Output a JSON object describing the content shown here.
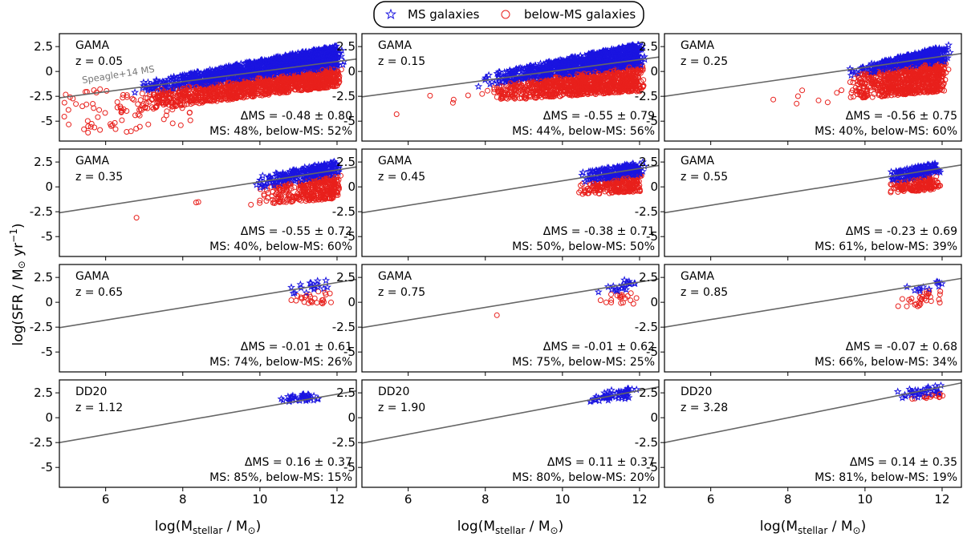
{
  "chart_data": {
    "type": "scatter",
    "layout": "4x3 panel grid",
    "legend": {
      "position": "top-center",
      "entries": [
        {
          "name": "MS galaxies",
          "marker": "star",
          "color": "#1a14e0"
        },
        {
          "name": "below-MS galaxies",
          "marker": "circle",
          "color": "#e8201c"
        }
      ]
    },
    "xlabel": "log(M",
    "xlabel_sub": "stellar",
    "xlabel_tail": " / M",
    "xlabel_sun": "⊙",
    "xlabel_end": ")",
    "ylabel": "log(SFR / M",
    "ylabel_sun": "⊙",
    "ylabel_mid": " yr",
    "ylabel_sup": "−1",
    "ylabel_end": ")",
    "xlim": [
      4.8,
      12.5
    ],
    "ylim": [
      -7.0,
      3.8
    ],
    "xticks": [
      6,
      8,
      10,
      12
    ],
    "xtick_labels": [
      "6",
      "8",
      "10",
      "12"
    ],
    "yticks": [
      2.5,
      0,
      -2.5,
      -5
    ],
    "ytick_labels": [
      "2.5",
      "0",
      "-2.5",
      "-5"
    ],
    "reference_line": {
      "label": "Speagle+14 MS",
      "points": [
        [
          4.8,
          -2.65
        ],
        [
          12.5,
          1.25
        ]
      ]
    },
    "panels": [
      {
        "survey": "GAMA",
        "z_label": "z = 0.05",
        "z": 0.05,
        "delta_ms": "ΔMS = -0.48 ± 0.80",
        "frac": "MS: 48%, below-MS: 52%",
        "ms_pct": 48,
        "bms_pct": 52,
        "cloud": {
          "xmin": 6.8,
          "xmax": 12.0,
          "ymin_at_low": -4.0,
          "ymin_at_high": -1.5,
          "ymax_at_low": -1.2,
          "ymax_at_high": 2.6
        },
        "ms_line": [
          [
            4.8,
            -2.65
          ],
          [
            12.5,
            1.25
          ]
        ]
      },
      {
        "survey": "GAMA",
        "z_label": "z = 0.15",
        "z": 0.15,
        "delta_ms": "ΔMS = -0.55 ± 0.79",
        "frac": "MS: 44%, below-MS: 56%",
        "ms_pct": 44,
        "bms_pct": 56,
        "cloud": {
          "xmin": 8.0,
          "xmax": 12.0,
          "ymin_at_low": -3.0,
          "ymin_at_high": -2.0,
          "ymax_at_low": -0.3,
          "ymax_at_high": 2.8
        },
        "ms_line": [
          [
            4.8,
            -2.55
          ],
          [
            12.5,
            1.45
          ]
        ]
      },
      {
        "survey": "GAMA",
        "z_label": "z = 0.25",
        "z": 0.25,
        "delta_ms": "ΔMS = -0.56 ± 0.75",
        "frac": "MS: 40%, below-MS: 60%",
        "ms_pct": 40,
        "bms_pct": 60,
        "cloud": {
          "xmin": 9.6,
          "xmax": 12.0,
          "ymin_at_low": -2.8,
          "ymin_at_high": -2.0,
          "ymax_at_low": 0.3,
          "ymax_at_high": 2.5
        },
        "ms_line": [
          [
            4.8,
            -2.5
          ],
          [
            12.5,
            1.8
          ]
        ]
      },
      {
        "survey": "GAMA",
        "z_label": "z = 0.35",
        "z": 0.35,
        "delta_ms": "ΔMS = -0.55 ± 0.72",
        "frac": "MS: 40%, below-MS: 60%",
        "ms_pct": 40,
        "bms_pct": 60,
        "cloud": {
          "xmin": 9.9,
          "xmax": 12.0,
          "ymin_at_low": -1.8,
          "ymin_at_high": -1.2,
          "ymax_at_low": 1.0,
          "ymax_at_high": 2.6
        },
        "ms_line": [
          [
            4.8,
            -2.6
          ],
          [
            12.5,
            2.0
          ]
        ]
      },
      {
        "survey": "GAMA",
        "z_label": "z = 0.45",
        "z": 0.45,
        "delta_ms": "ΔMS = -0.38 ± 0.71",
        "frac": "MS: 50%, below-MS: 50%",
        "ms_pct": 50,
        "bms_pct": 50,
        "cloud": {
          "xmin": 10.4,
          "xmax": 12.0,
          "ymin_at_low": -0.8,
          "ymin_at_high": -0.5,
          "ymax_at_low": 1.4,
          "ymax_at_high": 2.5
        },
        "ms_line": [
          [
            4.8,
            -2.6
          ],
          [
            12.5,
            2.15
          ]
        ]
      },
      {
        "survey": "GAMA",
        "z_label": "z = 0.55",
        "z": 0.55,
        "delta_ms": "ΔMS = -0.23 ± 0.69",
        "frac": "MS: 61%, below-MS: 39%",
        "ms_pct": 61,
        "bms_pct": 39,
        "cloud": {
          "xmin": 10.6,
          "xmax": 11.8,
          "ymin_at_low": -0.6,
          "ymin_at_high": -0.3,
          "ymax_at_low": 1.5,
          "ymax_at_high": 2.4
        },
        "ms_line": [
          [
            4.8,
            -2.6
          ],
          [
            12.5,
            2.2
          ]
        ]
      },
      {
        "survey": "GAMA",
        "z_label": "z = 0.65",
        "z": 0.65,
        "delta_ms": "ΔMS = -0.01 ± 0.61",
        "frac": "MS: 74%, below-MS: 26%",
        "ms_pct": 74,
        "bms_pct": 26,
        "cloud": {
          "xmin": 10.7,
          "xmax": 11.8,
          "ymin_at_low": -0.4,
          "ymin_at_high": -0.1,
          "ymax_at_low": 1.5,
          "ymax_at_high": 2.5
        },
        "ms_line": [
          [
            4.8,
            -2.55
          ],
          [
            12.5,
            2.3
          ]
        ]
      },
      {
        "survey": "GAMA",
        "z_label": "z = 0.75",
        "z": 0.75,
        "delta_ms": "ΔMS = -0.01 ± 0.62",
        "frac": "MS: 75%, below-MS: 25%",
        "ms_pct": 75,
        "bms_pct": 25,
        "cloud": {
          "xmin": 10.9,
          "xmax": 11.8,
          "ymin_at_low": -0.3,
          "ymin_at_high": -0.2,
          "ymax_at_low": 1.5,
          "ymax_at_high": 2.6
        },
        "ms_line": [
          [
            4.8,
            -2.55
          ],
          [
            12.5,
            2.35
          ]
        ]
      },
      {
        "survey": "GAMA",
        "z_label": "z = 0.85",
        "z": 0.85,
        "delta_ms": "ΔMS = -0.07 ± 0.68",
        "frac": "MS: 66%, below-MS: 34%",
        "ms_pct": 66,
        "bms_pct": 34,
        "cloud": {
          "xmin": 10.9,
          "xmax": 12.0,
          "ymin_at_low": -0.5,
          "ymin_at_high": -0.3,
          "ymax_at_low": 1.6,
          "ymax_at_high": 2.6
        },
        "ms_line": [
          [
            4.8,
            -2.5
          ],
          [
            12.5,
            2.4
          ]
        ]
      },
      {
        "survey": "DD20",
        "z_label": "z = 1.12",
        "z": 1.12,
        "delta_ms": "ΔMS = 0.16 ± 0.37",
        "frac": "MS: 85%, below-MS: 15%",
        "ms_pct": 85,
        "bms_pct": 15,
        "cloud": {
          "xmin": 10.6,
          "xmax": 11.4,
          "ymin_at_low": 1.6,
          "ymin_at_high": 1.7,
          "ymax_at_low": 2.3,
          "ymax_at_high": 2.4
        },
        "ms_line": [
          [
            4.8,
            -2.5
          ],
          [
            12.5,
            2.7
          ]
        ]
      },
      {
        "survey": "DD20",
        "z_label": "z = 1.90",
        "z": 1.9,
        "delta_ms": "ΔMS = 0.11 ± 0.37",
        "frac": "MS: 80%, below-MS: 20%",
        "ms_pct": 80,
        "bms_pct": 20,
        "cloud": {
          "xmin": 10.4,
          "xmax": 11.8,
          "ymin_at_low": 1.5,
          "ymin_at_high": 1.9,
          "ymax_at_low": 2.4,
          "ymax_at_high": 3.0
        },
        "ms_line": [
          [
            4.8,
            -2.55
          ],
          [
            12.5,
            3.1
          ]
        ]
      },
      {
        "survey": "DD20",
        "z_label": "z = 3.28",
        "z": 3.28,
        "delta_ms": "ΔMS = 0.14 ± 0.35",
        "frac": "MS: 81%, below-MS: 19%",
        "ms_pct": 81,
        "bms_pct": 19,
        "cloud": {
          "xmin": 10.7,
          "xmax": 12.0,
          "ymin_at_low": 1.7,
          "ymin_at_high": 2.0,
          "ymax_at_low": 2.7,
          "ymax_at_high": 3.3
        },
        "ms_line": [
          [
            4.8,
            -2.5
          ],
          [
            12.5,
            3.5
          ]
        ]
      }
    ]
  }
}
